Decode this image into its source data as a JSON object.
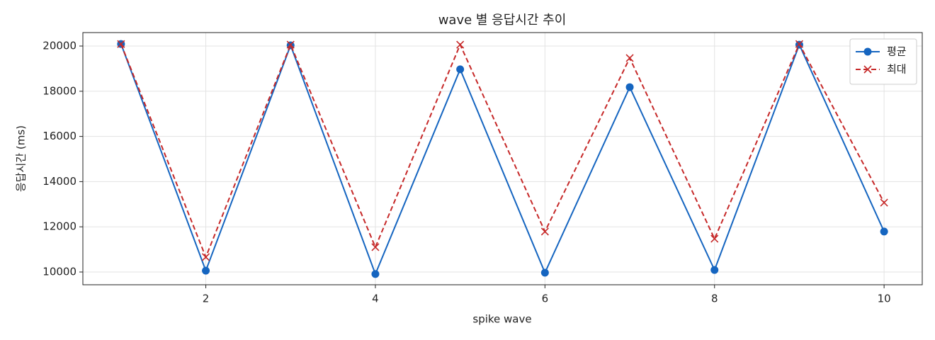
{
  "chart_data": {
    "type": "line",
    "title": "wave 별 응답시간 추이",
    "xlabel": "spike wave",
    "ylabel": "응답시간 (ms)",
    "x": [
      1,
      2,
      3,
      4,
      5,
      6,
      7,
      8,
      9,
      10
    ],
    "series": [
      {
        "name": "평균",
        "color": "#1565c0",
        "linestyle": "solid",
        "marker": "circle",
        "values": [
          20090,
          10060,
          20030,
          9910,
          18970,
          9970,
          18180,
          10090,
          20060,
          11790
        ]
      },
      {
        "name": "최대",
        "color": "#c62828",
        "linestyle": "dashed",
        "marker": "x",
        "values": [
          20090,
          10660,
          20060,
          11100,
          20060,
          11790,
          19470,
          11470,
          20090,
          13070
        ]
      }
    ],
    "xlim": [
      0.55,
      10.45
    ],
    "xticks": [
      2,
      4,
      6,
      8,
      10
    ],
    "ylim": [
      9436,
      20596
    ],
    "yticks": [
      10000,
      12000,
      14000,
      16000,
      18000,
      20000
    ],
    "grid": true,
    "legend": "upper right"
  }
}
